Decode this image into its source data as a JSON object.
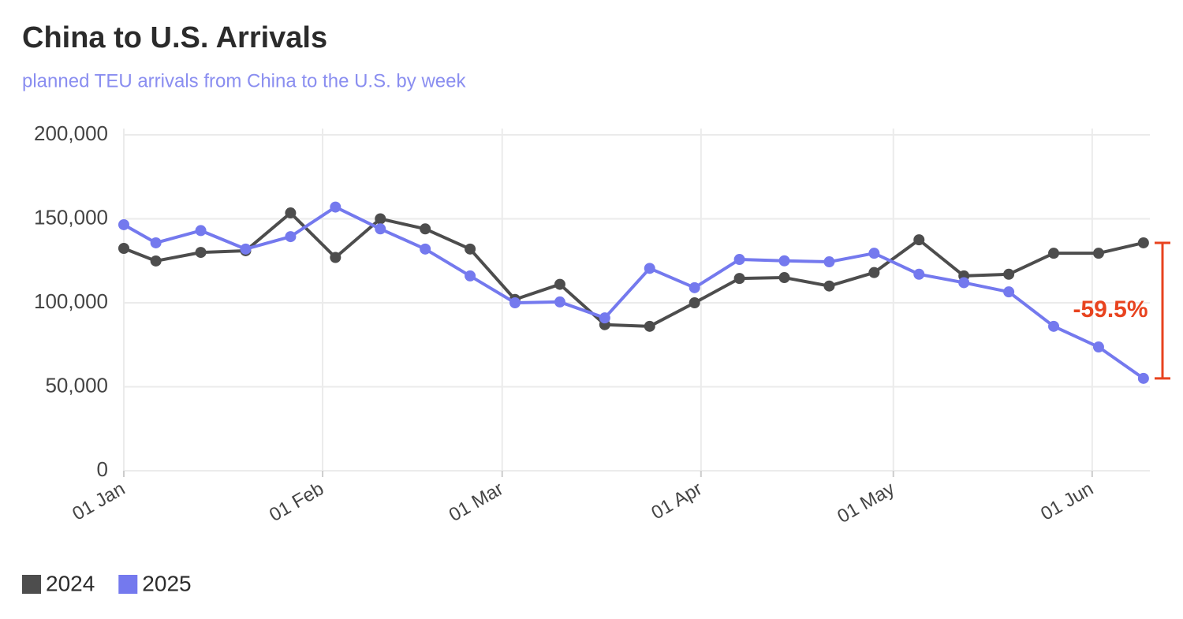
{
  "chart_data": {
    "type": "line",
    "title": "China to U.S. Arrivals",
    "subtitle": "planned TEU arrivals from China to the U.S. by week",
    "x": [
      "01-01",
      "01-06",
      "01-13",
      "01-20",
      "01-27",
      "02-03",
      "02-10",
      "02-17",
      "02-24",
      "03-03",
      "03-10",
      "03-17",
      "03-24",
      "03-31",
      "04-07",
      "04-14",
      "04-21",
      "04-28",
      "05-05",
      "05-12",
      "05-19",
      "05-26",
      "06-02",
      "06-09"
    ],
    "series": [
      {
        "name": "2024",
        "color": "#4d4d4d",
        "values": [
          132400,
          124900,
          130000,
          131000,
          153500,
          127000,
          150000,
          144000,
          132000,
          102000,
          111000,
          87000,
          86000,
          100000,
          114500,
          115000,
          110000,
          118000,
          137500,
          116000,
          117000,
          129500,
          129500,
          135700
        ]
      },
      {
        "name": "2025",
        "color": "#7479ee",
        "values": [
          146500,
          135700,
          143000,
          132000,
          139400,
          157000,
          144000,
          132000,
          116000,
          100000,
          100500,
          91000,
          120500,
          109000,
          125800,
          125000,
          124400,
          129500,
          117000,
          112000,
          106500,
          86000,
          73700,
          55000
        ]
      }
    ],
    "xlim": [
      "01-01",
      "06-10"
    ],
    "xticks": [
      {
        "value": "01-01",
        "label": "01 Jan"
      },
      {
        "value": "02-01",
        "label": "01 Feb"
      },
      {
        "value": "03-01",
        "label": "01 Mar"
      },
      {
        "value": "04-01",
        "label": "01 Apr"
      },
      {
        "value": "05-01",
        "label": "01 May"
      },
      {
        "value": "06-01",
        "label": "01 Jun"
      }
    ],
    "ylim": [
      0,
      200000
    ],
    "yticks": [
      0,
      {
        "value": 50000,
        "label": "50,000"
      },
      {
        "value": 100000,
        "label": "100,000"
      },
      {
        "value": 150000,
        "label": "150,000"
      },
      {
        "value": 200000,
        "label": "200,000"
      }
    ],
    "grid": true,
    "legend": "bottom-left",
    "annotation": {
      "text": "-59.5%",
      "color": "#e8431f"
    }
  }
}
